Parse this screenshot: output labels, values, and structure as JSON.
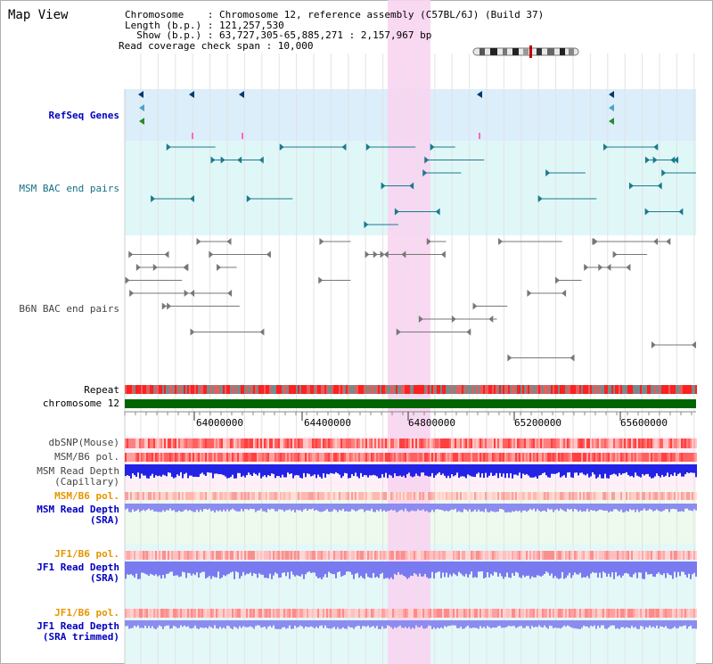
{
  "title": "Map View",
  "header": {
    "line1": "Chromosome    : Chromosome 12, reference assembly (C57BL/6J) (Build 37)",
    "line2": "Length (b.p.) : 121,257,530",
    "line3": "  Show (b.p.) : 63,727,305-65,885,271 : 2,157,967 bp",
    "line4": "Read coverage check span : 10,000"
  },
  "tracks": {
    "refseq": "RefSeq Genes",
    "msm_bac": "MSM BAC end pairs",
    "b6n_bac": "B6N BAC end pairs",
    "repeat": "Repeat",
    "chromosome": "chromosome 12",
    "dbsnp": "dbSNP(Mouse)",
    "msm_b6_pol_1": "MSM/B6 pol.",
    "msm_read_depth_cap_1": "MSM Read Depth",
    "msm_read_depth_cap_2": "(Capillary)",
    "msm_b6_pol_2": "MSM/B6 pol.",
    "msm_read_depth_sra_1": "MSM Read Depth",
    "msm_read_depth_sra_2": "(SRA)",
    "jf1_b6_pol_1": "JF1/B6 pol.",
    "jf1_read_depth_sra_1": "JF1 Read Depth",
    "jf1_read_depth_sra_2": "(SRA)",
    "jf1_b6_pol_2": "JF1/B6 pol.",
    "jf1_read_depth_trim_1": "JF1 Read Depth",
    "jf1_read_depth_trim_2": "(SRA trimmed)"
  },
  "axis": {
    "ticks": [
      "64000000",
      "64400000",
      "64800000",
      "65200000",
      "65600000"
    ]
  },
  "colors": {
    "highlight": "#f8d4f1",
    "refseq_bg": "#dbeefa",
    "bac_bg": "#e0f7f7",
    "chrom_bar": "#006400",
    "depth_blue": "#2323e6",
    "depth_light": "#8c8cf0"
  },
  "icons": {
    "chromosome_ideogram": "chromosome-ideogram-icon"
  }
}
